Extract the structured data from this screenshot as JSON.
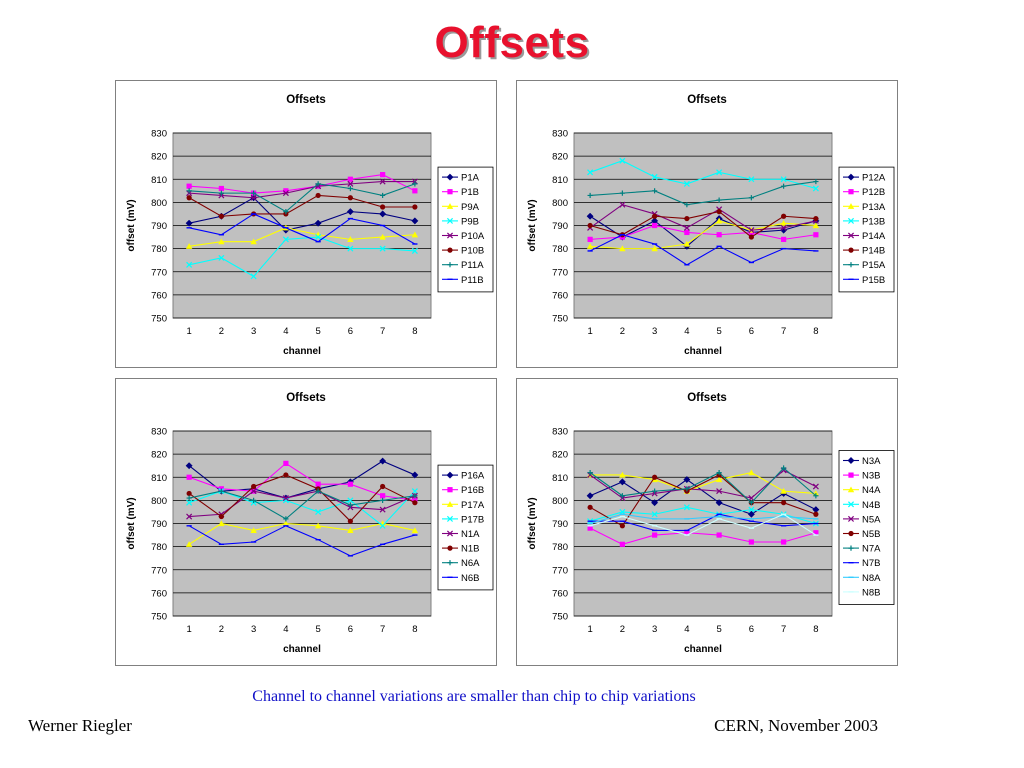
{
  "slide": {
    "title": "Offsets",
    "caption": "Channel to channel variations are smaller than chip to chip variations",
    "footer_left": "Werner Riegler",
    "footer_right": "CERN, November 2003"
  },
  "chart_data": [
    {
      "type": "line",
      "title": "Offsets",
      "xlabel": "channel",
      "ylabel": "offset (mV)",
      "categories": [
        1,
        2,
        3,
        4,
        5,
        6,
        7,
        8
      ],
      "ylim": [
        750,
        830
      ],
      "yticks": [
        750,
        760,
        770,
        780,
        790,
        800,
        810,
        820,
        830
      ],
      "grid": true,
      "legend": "right",
      "plot_background": "#c0c0c0",
      "series": [
        {
          "name": "P1A",
          "color": "#000080",
          "marker": "diamond",
          "values": [
            791,
            794,
            802,
            788,
            791,
            796,
            795,
            792
          ]
        },
        {
          "name": "P1B",
          "color": "#ff00ff",
          "marker": "square",
          "values": [
            807,
            806,
            804,
            805,
            807,
            810,
            812,
            805
          ]
        },
        {
          "name": "P9A",
          "color": "#ffff00",
          "marker": "triangle",
          "values": [
            781,
            783,
            783,
            789,
            786,
            784,
            785,
            786
          ]
        },
        {
          "name": "P9B",
          "color": "#00ffff",
          "marker": "x",
          "values": [
            773,
            776,
            768,
            784,
            785,
            780,
            780,
            779
          ]
        },
        {
          "name": "P10A",
          "color": "#800080",
          "marker": "x",
          "values": [
            804,
            803,
            802,
            804,
            807,
            808,
            809,
            809
          ]
        },
        {
          "name": "P10B",
          "color": "#800000",
          "marker": "circle",
          "values": [
            802,
            794,
            795,
            795,
            803,
            802,
            798,
            798
          ]
        },
        {
          "name": "P11A",
          "color": "#008080",
          "marker": "plus",
          "values": [
            805,
            804,
            804,
            796,
            808,
            806,
            803,
            808
          ]
        },
        {
          "name": "P11B",
          "color": "#0000ff",
          "marker": "dash",
          "values": [
            789,
            786,
            795,
            789,
            783,
            793,
            790,
            782
          ]
        }
      ]
    },
    {
      "type": "line",
      "title": "Offsets",
      "xlabel": "channel",
      "ylabel": "offset (mV)",
      "categories": [
        1,
        2,
        3,
        4,
        5,
        6,
        7,
        8
      ],
      "ylim": [
        750,
        830
      ],
      "yticks": [
        750,
        760,
        770,
        780,
        790,
        800,
        810,
        820,
        830
      ],
      "grid": true,
      "legend": "right",
      "plot_background": "#c0c0c0",
      "series": [
        {
          "name": "P12A",
          "color": "#000080",
          "marker": "diamond",
          "values": [
            794,
            785,
            792,
            781,
            793,
            787,
            788,
            792
          ]
        },
        {
          "name": "P12B",
          "color": "#ff00ff",
          "marker": "square",
          "values": [
            784,
            785,
            790,
            787,
            786,
            787,
            784,
            786
          ]
        },
        {
          "name": "P13A",
          "color": "#ffff00",
          "marker": "triangle",
          "values": [
            781,
            780,
            780,
            782,
            792,
            788,
            791,
            790
          ]
        },
        {
          "name": "P13B",
          "color": "#00ffff",
          "marker": "x",
          "values": [
            813,
            818,
            811,
            808,
            813,
            810,
            810,
            806
          ]
        },
        {
          "name": "P14A",
          "color": "#800080",
          "marker": "x",
          "values": [
            789,
            799,
            795,
            789,
            797,
            788,
            789,
            792
          ]
        },
        {
          "name": "P14B",
          "color": "#800000",
          "marker": "circle",
          "values": [
            790,
            786,
            794,
            793,
            796,
            785,
            794,
            793
          ]
        },
        {
          "name": "P15A",
          "color": "#008080",
          "marker": "plus",
          "values": [
            803,
            804,
            805,
            799,
            801,
            802,
            807,
            809
          ]
        },
        {
          "name": "P15B",
          "color": "#0000ff",
          "marker": "dash",
          "values": [
            779,
            786,
            782,
            773,
            781,
            774,
            780,
            779
          ]
        }
      ]
    },
    {
      "type": "line",
      "title": "Offsets",
      "xlabel": "channel",
      "ylabel": "offset (mV)",
      "categories": [
        1,
        2,
        3,
        4,
        5,
        6,
        7,
        8
      ],
      "ylim": [
        750,
        830
      ],
      "yticks": [
        750,
        760,
        770,
        780,
        790,
        800,
        810,
        820,
        830
      ],
      "grid": true,
      "legend": "right",
      "plot_background": "#c0c0c0",
      "series": [
        {
          "name": "P16A",
          "color": "#000080",
          "marker": "diamond",
          "values": [
            815,
            804,
            805,
            801,
            805,
            808,
            817,
            811
          ]
        },
        {
          "name": "P16B",
          "color": "#ff00ff",
          "marker": "square",
          "values": [
            810,
            805,
            804,
            816,
            807,
            807,
            802,
            800
          ]
        },
        {
          "name": "P17A",
          "color": "#ffff00",
          "marker": "triangle",
          "values": [
            781,
            790,
            787,
            790,
            789,
            787,
            790,
            787
          ]
        },
        {
          "name": "P17B",
          "color": "#00ffff",
          "marker": "x",
          "values": [
            799,
            804,
            799,
            800,
            795,
            800,
            789,
            804
          ]
        },
        {
          "name": "N1A",
          "color": "#800080",
          "marker": "x",
          "values": [
            793,
            794,
            804,
            801,
            804,
            797,
            796,
            802
          ]
        },
        {
          "name": "N1B",
          "color": "#800000",
          "marker": "circle",
          "values": [
            803,
            793,
            806,
            811,
            805,
            791,
            806,
            799
          ]
        },
        {
          "name": "N6A",
          "color": "#008080",
          "marker": "plus",
          "values": [
            801,
            804,
            800,
            792,
            804,
            798,
            800,
            802
          ]
        },
        {
          "name": "N6B",
          "color": "#0000ff",
          "marker": "dash",
          "values": [
            789,
            781,
            782,
            789,
            783,
            776,
            781,
            785
          ]
        }
      ]
    },
    {
      "type": "line",
      "title": "Offsets",
      "xlabel": "channel",
      "ylabel": "offset (mV)",
      "categories": [
        1,
        2,
        3,
        4,
        5,
        6,
        7,
        8
      ],
      "ylim": [
        750,
        830
      ],
      "yticks": [
        750,
        760,
        770,
        780,
        790,
        800,
        810,
        820,
        830
      ],
      "grid": true,
      "legend": "right",
      "plot_background": "#c0c0c0",
      "series": [
        {
          "name": "N3A",
          "color": "#000080",
          "marker": "diamond",
          "values": [
            802,
            808,
            799,
            809,
            799,
            794,
            803,
            796
          ]
        },
        {
          "name": "N3B",
          "color": "#ff00ff",
          "marker": "square",
          "values": [
            788,
            781,
            785,
            786,
            785,
            782,
            782,
            786
          ]
        },
        {
          "name": "N4A",
          "color": "#ffff00",
          "marker": "triangle",
          "values": [
            811,
            811,
            809,
            804,
            809,
            812,
            804,
            803
          ]
        },
        {
          "name": "N4B",
          "color": "#00ffff",
          "marker": "x",
          "values": [
            791,
            795,
            794,
            797,
            794,
            796,
            794,
            790
          ]
        },
        {
          "name": "N5A",
          "color": "#800080",
          "marker": "x",
          "values": [
            811,
            801,
            803,
            805,
            804,
            801,
            813,
            806
          ]
        },
        {
          "name": "N5B",
          "color": "#800000",
          "marker": "circle",
          "values": [
            797,
            789,
            810,
            804,
            811,
            799,
            799,
            794
          ]
        },
        {
          "name": "N7A",
          "color": "#008080",
          "marker": "plus",
          "values": [
            812,
            802,
            804,
            805,
            812,
            799,
            814,
            802
          ]
        },
        {
          "name": "N7B",
          "color": "#0000ff",
          "marker": "dash",
          "values": [
            791,
            791,
            787,
            787,
            794,
            791,
            789,
            790
          ]
        },
        {
          "name": "N8A",
          "color": "#33ccff",
          "marker": "dash",
          "values": [
            790,
            794,
            792,
            792,
            793,
            792,
            793,
            792
          ]
        },
        {
          "name": "N8B",
          "color": "#ccffff",
          "marker": "dash",
          "values": [
            789,
            793,
            789,
            785,
            792,
            788,
            794,
            785
          ]
        }
      ]
    }
  ]
}
